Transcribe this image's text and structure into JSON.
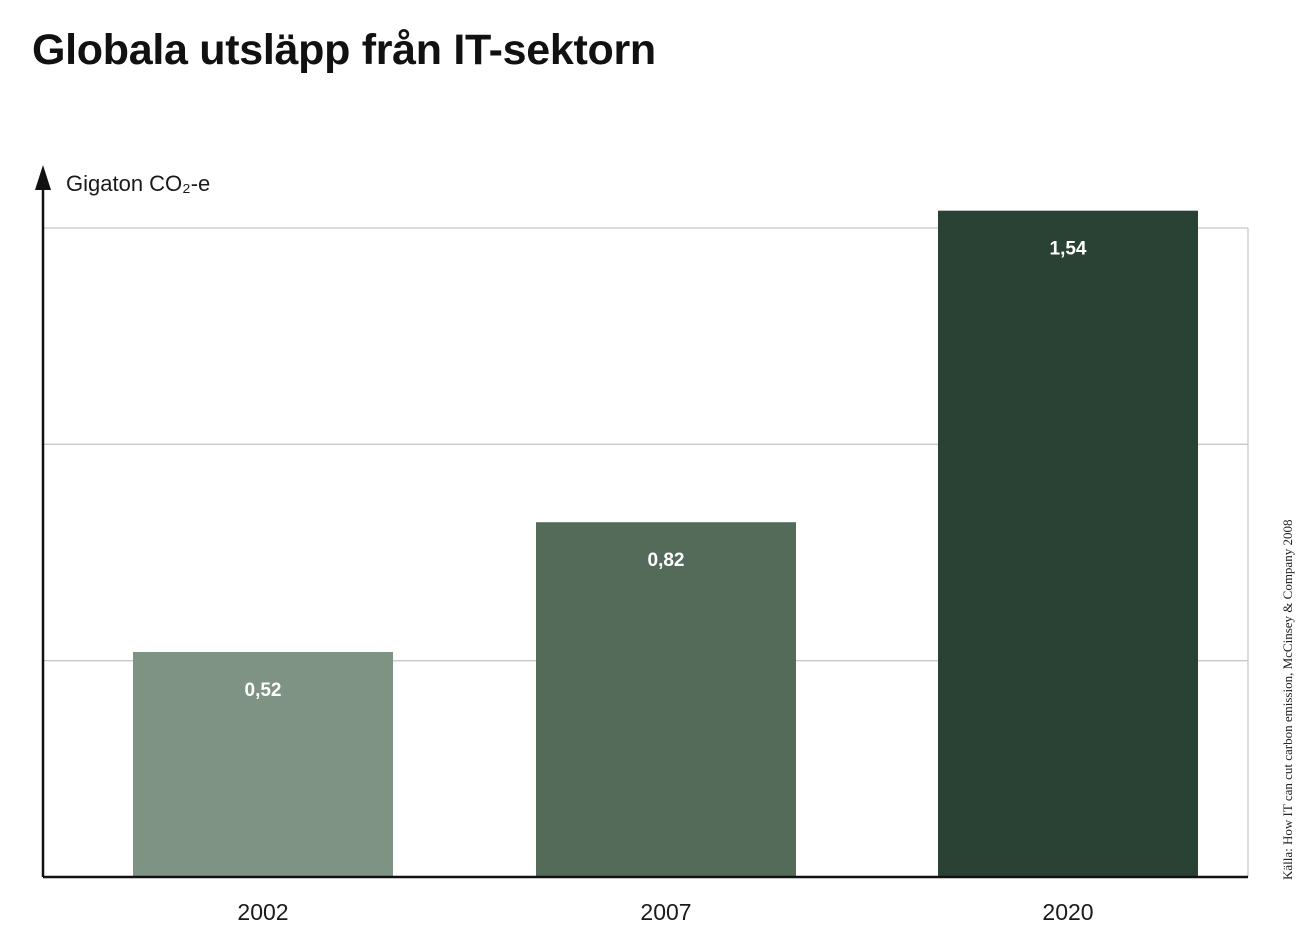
{
  "chart_data": {
    "type": "bar",
    "title": "Globala utsläpp från IT-sektorn",
    "ylabel": "Gigaton CO₂-e",
    "xlabel": "",
    "categories": [
      "2002",
      "2007",
      "2020"
    ],
    "values": [
      0.52,
      0.82,
      1.54
    ],
    "value_labels": [
      "0,52",
      "0,82",
      "1,54"
    ],
    "bar_colors": [
      "#7f9385",
      "#546b5a",
      "#2a4233"
    ],
    "ylim": [
      0,
      1.5
    ],
    "gridlines": [
      0.5,
      1.0,
      1.5
    ],
    "grid": true,
    "source": "Källa: How IT can cut carbon emission, McCinsey & Company 2008"
  }
}
